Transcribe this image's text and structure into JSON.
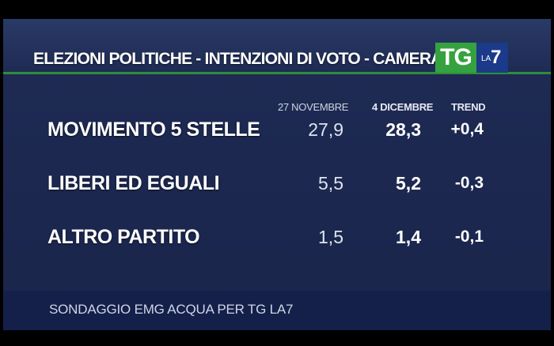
{
  "header": {
    "title": "ELEZIONI POLITICHE - INTENZIONI DI VOTO - CAMERA"
  },
  "logo": {
    "tg": "TG",
    "la": "LA",
    "seven": "7"
  },
  "columns": {
    "prev": "27 NOVEMBRE",
    "curr": "4 DICEMBRE",
    "trend": "TREND"
  },
  "rows": [
    {
      "party": "MOVIMENTO 5 STELLE",
      "prev": "27,9",
      "curr": "28,3",
      "trend": "+0,4"
    },
    {
      "party": "LIBERI ED EGUALI",
      "prev": "5,5",
      "curr": "5,2",
      "trend": "-0,3"
    },
    {
      "party": "ALTRO PARTITO",
      "prev": "1,5",
      "curr": "1,4",
      "trend": "-0,1"
    }
  ],
  "footer": {
    "source": "SONDAGGIO EMG ACQUA PER TG LA7"
  },
  "colors": {
    "background": "#1c2850",
    "accent_green": "#36a23f",
    "logo_blue": "#1c3a8a",
    "text": "#ffffff"
  }
}
